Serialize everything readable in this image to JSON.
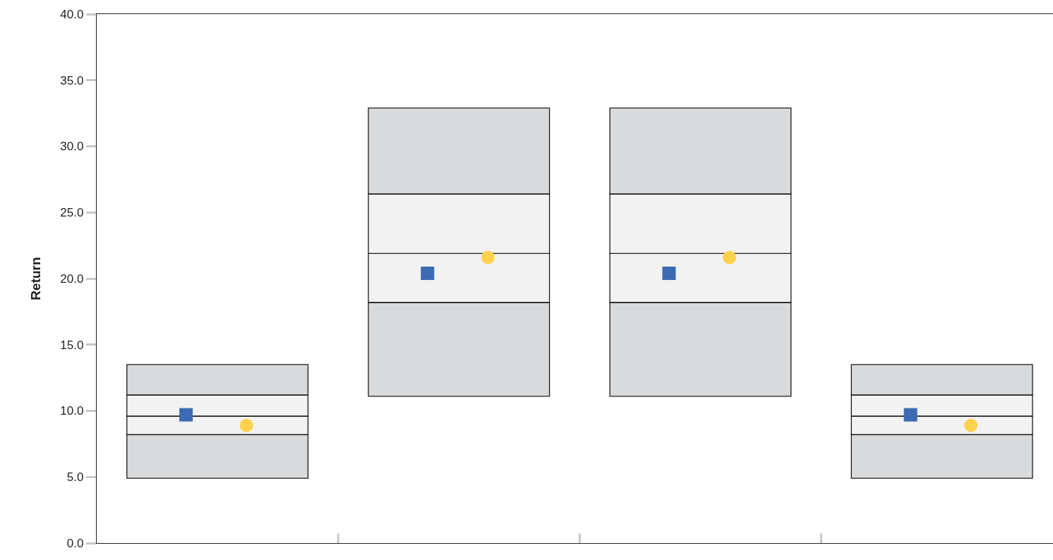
{
  "chart_data": {
    "type": "bar",
    "ylabel": "Return",
    "categories": [
      null,
      null,
      null,
      null
    ],
    "ylim": [
      0,
      40
    ],
    "yticks": [
      {
        "value": 0,
        "label": "0.0"
      },
      {
        "value": 5,
        "label": "5.0"
      },
      {
        "value": 10,
        "label": "10.0"
      },
      {
        "value": 15,
        "label": "15.0"
      },
      {
        "value": 20,
        "label": "20.0"
      },
      {
        "value": 25,
        "label": "25.0"
      },
      {
        "value": 30,
        "label": "30.0"
      },
      {
        "value": 35,
        "label": "35.0"
      },
      {
        "value": 40,
        "label": "40.0"
      }
    ],
    "grid": false,
    "series": [
      {
        "color": "#d9dadc",
        "base": [
          4.9,
          11.1,
          11.1,
          4.9
        ],
        "values": [
          3.3,
          7.1,
          7.1,
          3.3
        ]
      },
      {
        "color": "#f2f2f2",
        "base": [
          8.2,
          18.2,
          18.2,
          8.2
        ],
        "values": [
          1.4,
          3.7,
          3.7,
          1.4
        ]
      },
      {
        "color": "#f2f2f2",
        "base": [
          9.6,
          21.9,
          21.9,
          9.6
        ],
        "values": [
          1.6,
          4.5,
          4.5,
          1.6
        ]
      },
      {
        "color": "#d9dadc",
        "base": [
          11.2,
          26.4,
          26.4,
          11.2
        ],
        "values": [
          2.3,
          6.5,
          6.5,
          2.3
        ]
      },
      {
        "type": "scatter",
        "marker": "square",
        "color": "#3d6bb3",
        "values": [
          9.7,
          20.4,
          20.4,
          9.7
        ]
      },
      {
        "type": "scatter",
        "marker": "circle",
        "color": "#ffd24d",
        "values": [
          8.9,
          21.6,
          21.6,
          8.9
        ]
      }
    ]
  }
}
